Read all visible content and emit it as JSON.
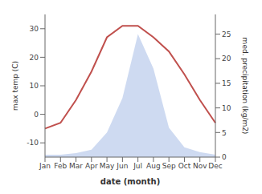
{
  "chart_data": {
    "type": "line",
    "categories": [
      "Jan",
      "Feb",
      "Mar",
      "Apr",
      "May",
      "Jun",
      "Jul",
      "Aug",
      "Sep",
      "Oct",
      "Nov",
      "Dec"
    ],
    "xlabel": "date (month)",
    "ylabel": "max temp (C)",
    "y2label": "med. precipitation (kg/m2)",
    "ylim": [
      -15,
      35
    ],
    "yticks": [
      -10,
      0,
      10,
      20,
      30
    ],
    "y2lim": [
      0,
      29
    ],
    "y2ticks": [
      0,
      5,
      10,
      15,
      20,
      25
    ],
    "grid": false,
    "series": [
      {
        "type": "area",
        "axis": "y2",
        "color": "#c5d3ee",
        "values": [
          0.5,
          0.5,
          0.8,
          1.5,
          5,
          12,
          25,
          18,
          6,
          2,
          1,
          0.5
        ]
      },
      {
        "type": "line",
        "color": "#c0504d",
        "values": [
          -5,
          -3,
          5,
          15,
          27,
          31,
          31,
          27,
          22,
          14,
          5,
          -3
        ]
      }
    ]
  }
}
